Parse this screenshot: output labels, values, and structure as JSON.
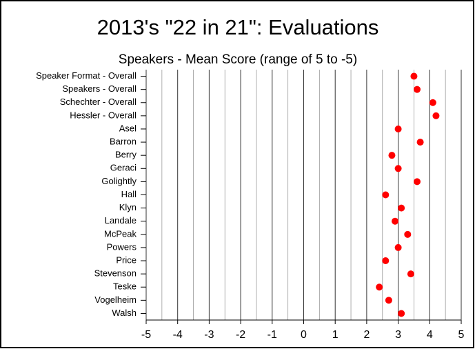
{
  "chart_data": {
    "type": "dot",
    "title": "2013's \"22 in 21\": Evaluations",
    "subtitle": "Speakers - Mean Score (range of 5 to -5)",
    "categories": [
      "Speaker Format - Overall",
      "Speakers - Overall",
      "Schechter - Overall",
      "Hessler - Overall",
      "Asel",
      "Barron",
      "Berry",
      "Geraci",
      "Golightly",
      "Hall",
      "Klyn",
      "Landale",
      "McPeak",
      "Powers",
      "Price",
      "Stevenson",
      "Teske",
      "Vogelheim",
      "Walsh"
    ],
    "values": [
      3.5,
      3.6,
      4.1,
      4.2,
      3.0,
      3.7,
      2.8,
      3.0,
      3.6,
      2.6,
      3.1,
      2.9,
      3.3,
      3.0,
      2.6,
      3.4,
      2.4,
      2.7,
      3.1
    ],
    "color": "#ff0000",
    "xlim": [
      -5,
      5
    ],
    "xticks": [
      -5,
      -4,
      -3,
      -2,
      -1,
      0,
      1,
      2,
      3,
      4,
      5
    ],
    "xminorticks": [
      -4.5,
      -3.5,
      -2.5,
      -1.5,
      -0.5,
      0.5,
      1.5,
      2.5,
      3.5,
      4.5
    ],
    "grid": true
  }
}
